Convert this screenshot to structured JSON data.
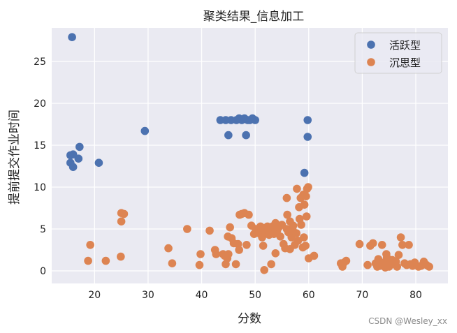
{
  "chart_data": {
    "type": "scatter",
    "title": "聚类结果_信息加工",
    "xlabel": "分数",
    "ylabel": "提前提交作业时间",
    "xlim": [
      12,
      86
    ],
    "ylim": [
      -1.5,
      29
    ],
    "xticks": [
      20,
      30,
      40,
      50,
      60,
      70,
      80
    ],
    "yticks": [
      0,
      5,
      10,
      15,
      20,
      25
    ],
    "grid": true,
    "legend_position": "top-right",
    "series": [
      {
        "name": "活跃型",
        "color": "#4c72b0",
        "points": [
          [
            15.8,
            27.9
          ],
          [
            15.5,
            13.8
          ],
          [
            16.0,
            13.9
          ],
          [
            15.5,
            12.9
          ],
          [
            16.0,
            12.4
          ],
          [
            17.0,
            13.4
          ],
          [
            17.2,
            14.8
          ],
          [
            20.8,
            12.9
          ],
          [
            29.4,
            16.7
          ],
          [
            43.5,
            18.0
          ],
          [
            44.5,
            18.0
          ],
          [
            45.5,
            18.0
          ],
          [
            46.5,
            18.0
          ],
          [
            47.0,
            18.2
          ],
          [
            47.5,
            18.0
          ],
          [
            48.0,
            18.2
          ],
          [
            48.6,
            18.0
          ],
          [
            49.0,
            18.0
          ],
          [
            49.5,
            18.2
          ],
          [
            50.0,
            18.0
          ],
          [
            45.0,
            16.2
          ],
          [
            48.3,
            16.2
          ],
          [
            59.8,
            18.0
          ],
          [
            59.8,
            16.0
          ],
          [
            59.2,
            11.7
          ]
        ]
      },
      {
        "name": "沉思型",
        "color": "#dd8452",
        "points": [
          [
            18.8,
            1.2
          ],
          [
            19.2,
            3.1
          ],
          [
            22.1,
            1.2
          ],
          [
            24.9,
            1.7
          ],
          [
            25.0,
            6.9
          ],
          [
            25.0,
            5.9
          ],
          [
            25.5,
            6.8
          ],
          [
            33.8,
            2.7
          ],
          [
            34.5,
            0.9
          ],
          [
            37.3,
            5.0
          ],
          [
            39.6,
            0.7
          ],
          [
            39.8,
            2.0
          ],
          [
            41.5,
            4.8
          ],
          [
            42.5,
            2.5
          ],
          [
            42.7,
            2.0
          ],
          [
            44.0,
            2.0
          ],
          [
            44.3,
            1.8
          ],
          [
            44.5,
            0.8
          ],
          [
            44.8,
            1.5
          ],
          [
            45.0,
            2.0
          ],
          [
            45.3,
            5.2
          ],
          [
            45.6,
            3.9
          ],
          [
            44.9,
            4.1
          ],
          [
            46.0,
            3.3
          ],
          [
            46.4,
            0.8
          ],
          [
            46.8,
            3.2
          ],
          [
            47.0,
            2.5
          ],
          [
            47.1,
            6.7
          ],
          [
            47.5,
            6.8
          ],
          [
            48.0,
            6.9
          ],
          [
            48.4,
            3.1
          ],
          [
            48.8,
            6.7
          ],
          [
            49.3,
            5.4
          ],
          [
            49.8,
            4.4
          ],
          [
            50.1,
            5.0
          ],
          [
            50.5,
            4.9
          ],
          [
            50.7,
            4.5
          ],
          [
            51.0,
            5.3
          ],
          [
            51.3,
            4.0
          ],
          [
            51.5,
            3.0
          ],
          [
            51.8,
            5.1
          ],
          [
            52.0,
            4.6
          ],
          [
            52.3,
            5.3
          ],
          [
            52.6,
            4.3
          ],
          [
            52.9,
            5.0
          ],
          [
            53.2,
            5.3
          ],
          [
            53.5,
            4.4
          ],
          [
            53.8,
            2.1
          ],
          [
            54.1,
            4.8
          ],
          [
            54.4,
            5.2
          ],
          [
            54.7,
            4.1
          ],
          [
            55.0,
            5.5
          ],
          [
            55.3,
            3.2
          ],
          [
            55.6,
            2.7
          ],
          [
            55.9,
            5.0
          ],
          [
            56.2,
            4.6
          ],
          [
            56.5,
            2.6
          ],
          [
            56.8,
            4.0
          ],
          [
            57.1,
            5.4
          ],
          [
            57.4,
            3.1
          ],
          [
            57.7,
            4.5
          ],
          [
            58.0,
            3.6
          ],
          [
            58.3,
            6.2
          ],
          [
            58.6,
            5.5
          ],
          [
            58.9,
            2.8
          ],
          [
            59.1,
            4.0
          ],
          [
            59.4,
            3.0
          ],
          [
            57.8,
            9.8
          ],
          [
            58.5,
            8.7
          ],
          [
            59.0,
            9.1
          ],
          [
            59.7,
            9.8
          ],
          [
            59.9,
            10.0
          ],
          [
            59.5,
            8.9
          ],
          [
            55.9,
            8.7
          ],
          [
            51.7,
            0.1
          ],
          [
            53.0,
            0.8
          ],
          [
            56.0,
            6.7
          ],
          [
            58.2,
            7.6
          ],
          [
            59.2,
            7.9
          ],
          [
            59.6,
            6.5
          ],
          [
            60.0,
            1.5
          ],
          [
            61.0,
            1.8
          ],
          [
            57.0,
            4.9
          ],
          [
            56.5,
            5.9
          ],
          [
            53.8,
            5.7
          ],
          [
            66.0,
            0.9
          ],
          [
            66.3,
            0.5
          ],
          [
            66.6,
            1.0
          ],
          [
            67.0,
            1.2
          ],
          [
            69.5,
            3.2
          ],
          [
            71.0,
            0.7
          ],
          [
            71.5,
            3.0
          ],
          [
            72.0,
            3.3
          ],
          [
            72.5,
            0.9
          ],
          [
            73.0,
            1.4
          ],
          [
            73.3,
            0.6
          ],
          [
            73.7,
            3.1
          ],
          [
            74.0,
            1.0
          ],
          [
            74.3,
            0.4
          ],
          [
            74.6,
            1.6
          ],
          [
            75.0,
            0.5
          ],
          [
            75.3,
            0.9
          ],
          [
            75.6,
            1.3
          ],
          [
            76.0,
            0.8
          ],
          [
            76.3,
            1.1
          ],
          [
            76.5,
            0.5
          ],
          [
            76.8,
            1.9
          ],
          [
            77.2,
            4.0
          ],
          [
            77.5,
            3.1
          ],
          [
            77.9,
            0.9
          ],
          [
            78.3,
            0.7
          ],
          [
            78.7,
            3.1
          ],
          [
            79.0,
            0.8
          ],
          [
            79.4,
            0.6
          ],
          [
            79.8,
            1.0
          ],
          [
            80.5,
            0.5
          ],
          [
            81.0,
            0.6
          ],
          [
            81.5,
            1.1
          ],
          [
            82.0,
            0.7
          ],
          [
            82.5,
            0.5
          ],
          [
            73.0,
            0.8
          ],
          [
            74.5,
            2.0
          ],
          [
            75.5,
            1.0
          ],
          [
            72.8,
            0.5
          ]
        ]
      }
    ]
  },
  "watermark": "CSDN @Wesley_xx"
}
